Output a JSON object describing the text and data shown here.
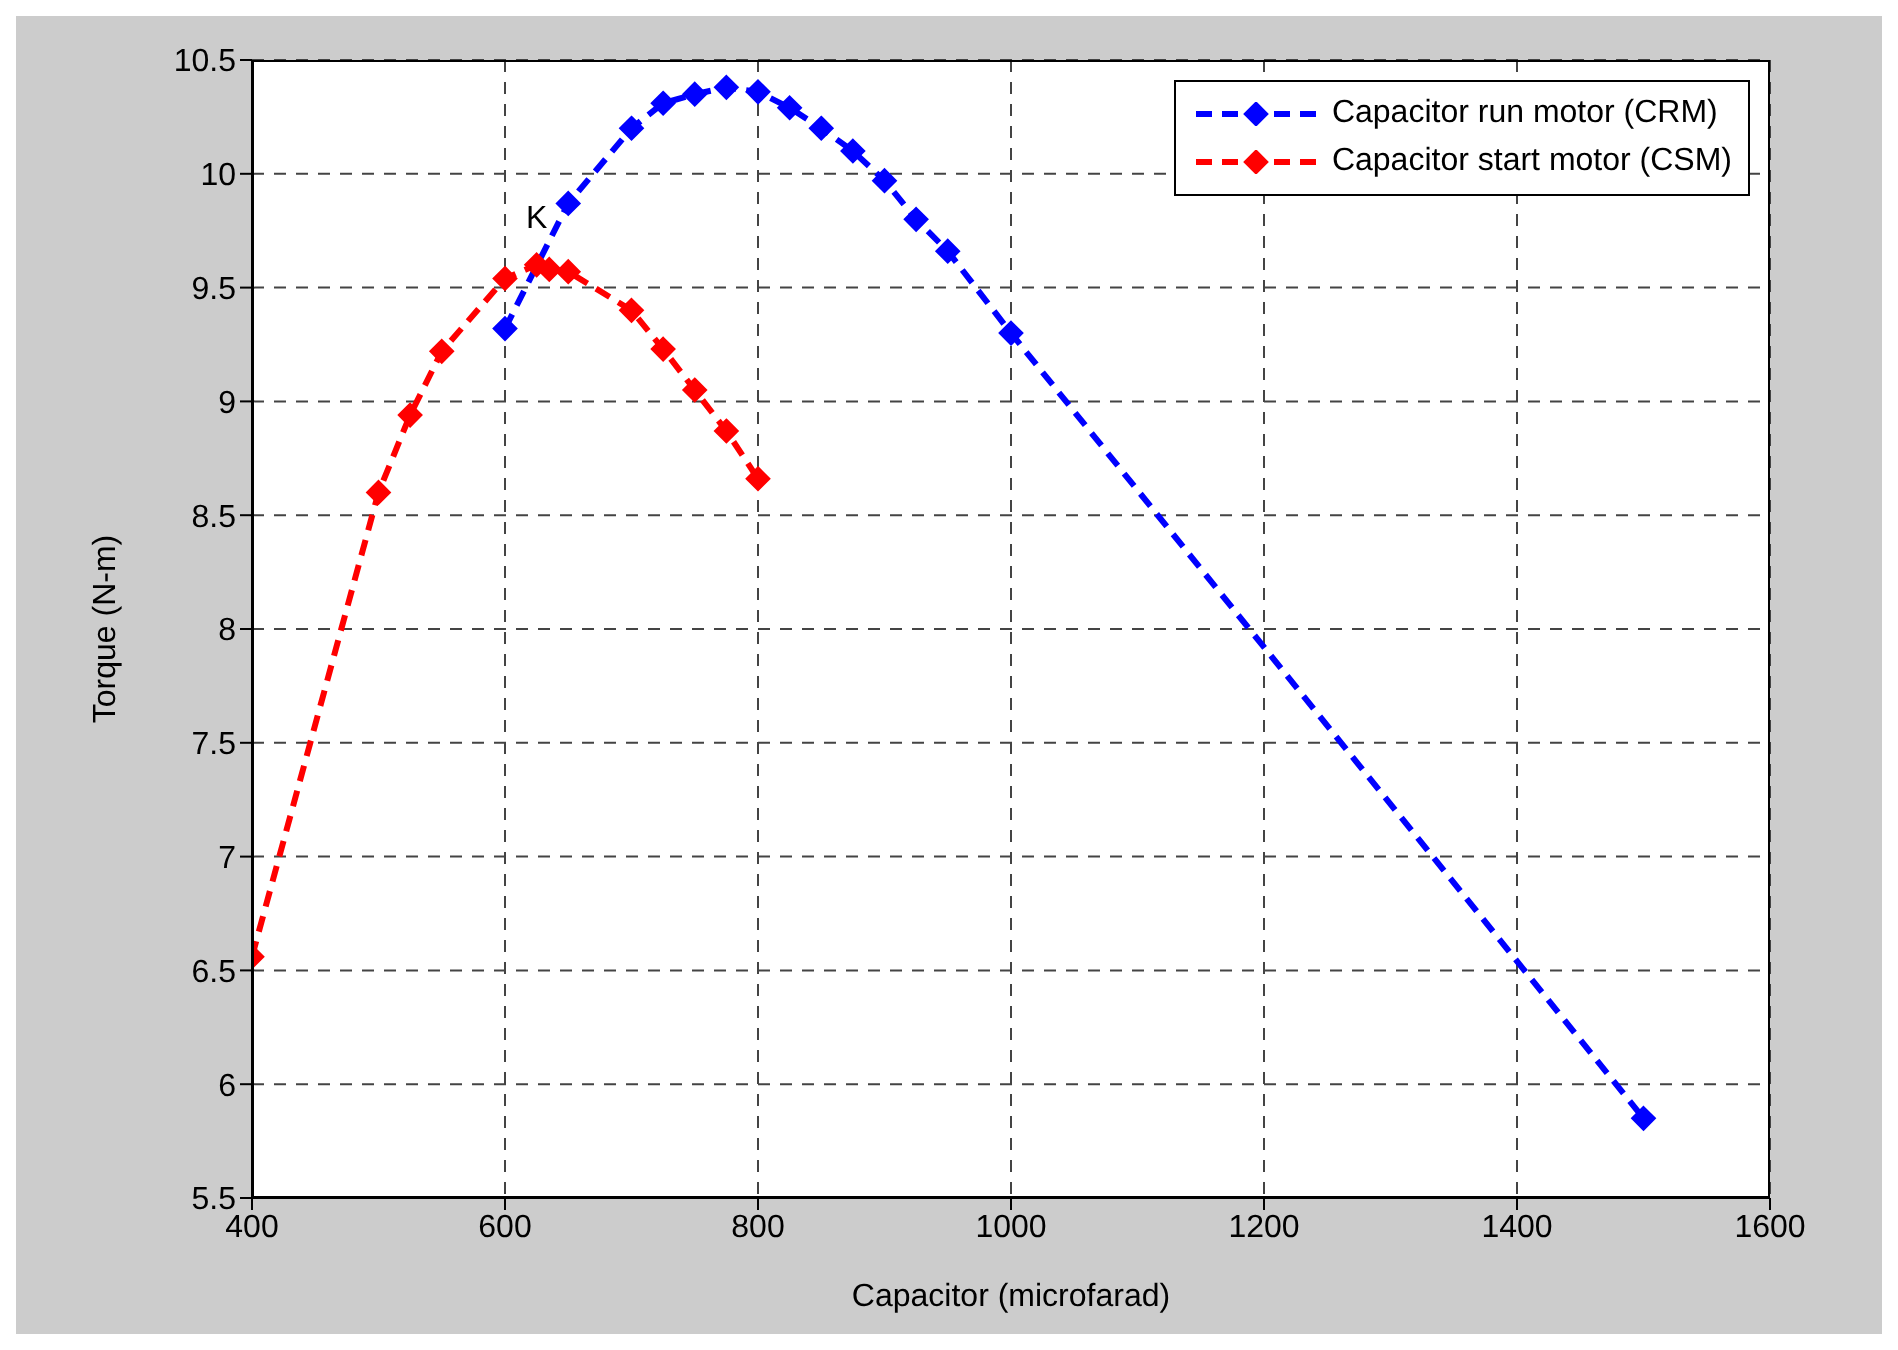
{
  "chart_data": {
    "type": "line",
    "xlabel": "Capacitor (microfarad)",
    "ylabel": "Torque (N-m)",
    "xlim": [
      400,
      1600
    ],
    "xticks": [
      400,
      600,
      800,
      1000,
      1200,
      1400,
      1600
    ],
    "ylim": [
      5.5,
      10.5
    ],
    "yticks": [
      5.5,
      6,
      6.5,
      7,
      7.5,
      8,
      8.5,
      9,
      9.5,
      10,
      10.5
    ],
    "grid": true,
    "legend": "top right",
    "marker": "diamond",
    "line_style": "dashed",
    "annotations": [
      {
        "text": "K",
        "x": 625,
        "y": 9.72
      }
    ],
    "series": [
      {
        "name": "Capacitor run motor (CRM)",
        "color": "#0000ff",
        "x": [
          600,
          650,
          700,
          725,
          750,
          775,
          800,
          825,
          850,
          875,
          900,
          925,
          950,
          1000,
          1500
        ],
        "values": [
          9.32,
          9.87,
          10.2,
          10.31,
          10.35,
          10.38,
          10.36,
          10.29,
          10.2,
          10.1,
          9.97,
          9.8,
          9.66,
          9.3,
          5.85
        ]
      },
      {
        "name": "Capacitor start motor (CSM)",
        "color": "#ff0000",
        "x": [
          400,
          500,
          525,
          550,
          600,
          625,
          635,
          650,
          700,
          725,
          750,
          775,
          800
        ],
        "values": [
          6.56,
          8.6,
          8.94,
          9.22,
          9.54,
          9.6,
          9.58,
          9.57,
          9.4,
          9.23,
          9.05,
          8.87,
          8.66
        ]
      }
    ]
  }
}
